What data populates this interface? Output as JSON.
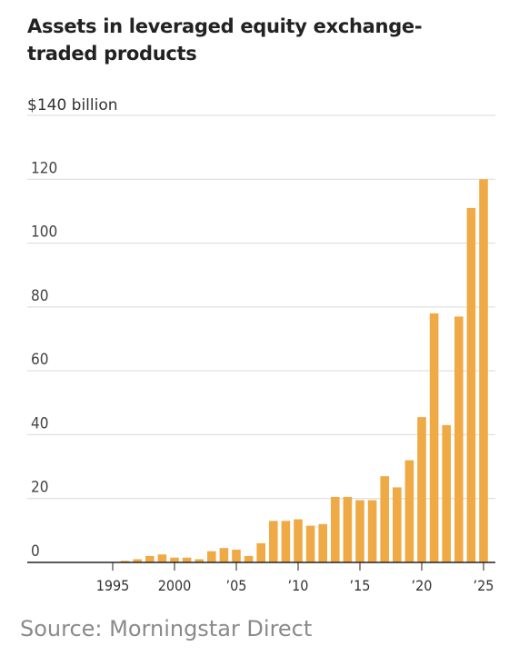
{
  "title": "Assets in leveraged equity exchange-traded products",
  "source": "Source: Morningstar Direct",
  "chart_data": {
    "type": "bar",
    "title": "Assets in leveraged equity exchange-traded products",
    "ylabel": "$140 billion",
    "unit_label": "$140 billion",
    "ylim": [
      0,
      140
    ],
    "yticks": [
      0,
      20,
      40,
      60,
      80,
      100,
      120
    ],
    "ytick_labels": [
      "0",
      "20",
      "40",
      "60",
      "80",
      "100",
      "120"
    ],
    "xticks": [
      1995,
      2000,
      2005,
      2010,
      2015,
      2020,
      2025
    ],
    "xtick_labels": [
      "1995",
      "2000",
      "’05",
      "’10",
      "’15",
      "’20",
      "’25"
    ],
    "grid": true,
    "bar_color": "#f0aa45",
    "categories": [
      1996,
      1997,
      1998,
      1999,
      2000,
      2001,
      2002,
      2003,
      2004,
      2005,
      2006,
      2007,
      2008,
      2009,
      2010,
      2011,
      2012,
      2013,
      2014,
      2015,
      2016,
      2017,
      2018,
      2019,
      2020,
      2021,
      2022,
      2023,
      2024,
      2025
    ],
    "values": [
      0.5,
      1,
      2,
      2.5,
      1.5,
      1.5,
      1,
      3.5,
      4.5,
      4,
      2,
      6,
      13,
      13,
      13.5,
      11.5,
      12,
      20.5,
      20.5,
      19.5,
      19.5,
      27,
      23.5,
      32,
      45.5,
      78,
      43,
      77,
      111,
      120
    ]
  }
}
